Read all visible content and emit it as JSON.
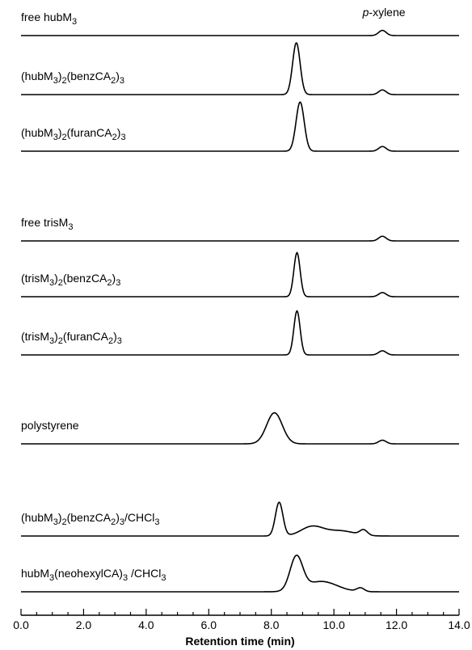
{
  "chart_data": {
    "type": "line",
    "title": "",
    "xlabel": "Retention time (min)",
    "ylabel": "",
    "xlim": [
      0,
      14
    ],
    "x_ticks": [
      "0.0",
      "2.0",
      "4.0",
      "6.0",
      "8.0",
      "10.0",
      "12.0",
      "14.0"
    ],
    "annotation": {
      "text": "p-xylene",
      "x": 11.6
    },
    "series": [
      {
        "id": "free-hubM3",
        "label_parts": [
          [
            "free hubM",
            "n"
          ],
          [
            "3",
            "sub"
          ]
        ],
        "peaks": [
          {
            "center": 11.55,
            "height": 0.1,
            "sigma": 0.12
          }
        ]
      },
      {
        "id": "hubM3-2-benzCA2-3",
        "label_parts": [
          [
            "(hubM",
            "n"
          ],
          [
            "3",
            "sub"
          ],
          [
            ")",
            "n"
          ],
          [
            "2",
            "sub"
          ],
          [
            "(benzCA",
            "n"
          ],
          [
            "2",
            "sub"
          ],
          [
            ")",
            "n"
          ],
          [
            "3",
            "sub"
          ]
        ],
        "peaks": [
          {
            "center": 8.8,
            "height": 1.0,
            "sigma": 0.12
          },
          {
            "center": 11.55,
            "height": 0.09,
            "sigma": 0.12
          }
        ]
      },
      {
        "id": "hubM3-2-furanCA2-3",
        "label_parts": [
          [
            "(hubM",
            "n"
          ],
          [
            "3",
            "sub"
          ],
          [
            ")",
            "n"
          ],
          [
            "2",
            "sub"
          ],
          [
            "(furanCA",
            "n"
          ],
          [
            "2",
            "sub"
          ],
          [
            ")",
            "n"
          ],
          [
            "3",
            "sub"
          ]
        ],
        "peaks": [
          {
            "center": 8.92,
            "height": 0.95,
            "sigma": 0.13
          },
          {
            "center": 11.55,
            "height": 0.09,
            "sigma": 0.12
          }
        ]
      },
      {
        "id": "free-trisM3",
        "label_parts": [
          [
            "free trisM",
            "n"
          ],
          [
            "3",
            "sub"
          ]
        ],
        "peaks": [
          {
            "center": 11.55,
            "height": 0.09,
            "sigma": 0.12
          }
        ]
      },
      {
        "id": "trisM3-2-benzCA2-3",
        "label_parts": [
          [
            "(trisM",
            "n"
          ],
          [
            "3",
            "sub"
          ],
          [
            ")",
            "n"
          ],
          [
            "2",
            "sub"
          ],
          [
            "(benzCA",
            "n"
          ],
          [
            "2",
            "sub"
          ],
          [
            ")",
            "n"
          ],
          [
            "3",
            "sub"
          ]
        ],
        "peaks": [
          {
            "center": 8.82,
            "height": 0.85,
            "sigma": 0.1
          },
          {
            "center": 11.55,
            "height": 0.08,
            "sigma": 0.12
          }
        ]
      },
      {
        "id": "trisM3-2-furanCA2-3",
        "label_parts": [
          [
            "(trisM",
            "n"
          ],
          [
            "3",
            "sub"
          ],
          [
            ")",
            "n"
          ],
          [
            "2",
            "sub"
          ],
          [
            "(furanCA",
            "n"
          ],
          [
            "2",
            "sub"
          ],
          [
            ")",
            "n"
          ],
          [
            "3",
            "sub"
          ]
        ],
        "peaks": [
          {
            "center": 8.82,
            "height": 0.85,
            "sigma": 0.1
          },
          {
            "center": 11.55,
            "height": 0.08,
            "sigma": 0.12
          }
        ]
      },
      {
        "id": "polystyrene",
        "label_parts": [
          [
            "polystyrene",
            "n"
          ]
        ],
        "peaks": [
          {
            "center": 8.1,
            "height": 0.6,
            "sigma": 0.25
          },
          {
            "center": 11.55,
            "height": 0.07,
            "sigma": 0.12
          }
        ]
      },
      {
        "id": "hubM3-2-benzCA2-3-CHCl3",
        "label_parts": [
          [
            "(hubM",
            "n"
          ],
          [
            "3",
            "sub"
          ],
          [
            ")",
            "n"
          ],
          [
            "2",
            "sub"
          ],
          [
            "(benzCA",
            "n"
          ],
          [
            "2",
            "sub"
          ],
          [
            ")",
            "n"
          ],
          [
            "3",
            "sub"
          ],
          [
            "/CHCl",
            "n"
          ],
          [
            "3",
            "sub"
          ]
        ],
        "peaks": [
          {
            "center": 8.25,
            "height": 0.65,
            "sigma": 0.12
          },
          {
            "center": 9.3,
            "height": 0.18,
            "sigma": 0.35
          },
          {
            "center": 10.2,
            "height": 0.1,
            "sigma": 0.45
          },
          {
            "center": 10.95,
            "height": 0.1,
            "sigma": 0.12
          }
        ]
      },
      {
        "id": "hubM3-neohexylCA-3-CHCl3",
        "label_parts": [
          [
            "hubM",
            "n"
          ],
          [
            "3",
            "sub"
          ],
          [
            "(neohexylCA)",
            "n"
          ],
          [
            "3",
            "sub"
          ],
          [
            " /CHCl",
            "n"
          ],
          [
            "3",
            "sub"
          ]
        ],
        "peaks": [
          {
            "center": 8.8,
            "height": 0.65,
            "sigma": 0.2
          },
          {
            "center": 9.6,
            "height": 0.2,
            "sigma": 0.5
          },
          {
            "center": 10.85,
            "height": 0.07,
            "sigma": 0.12
          }
        ]
      }
    ]
  }
}
